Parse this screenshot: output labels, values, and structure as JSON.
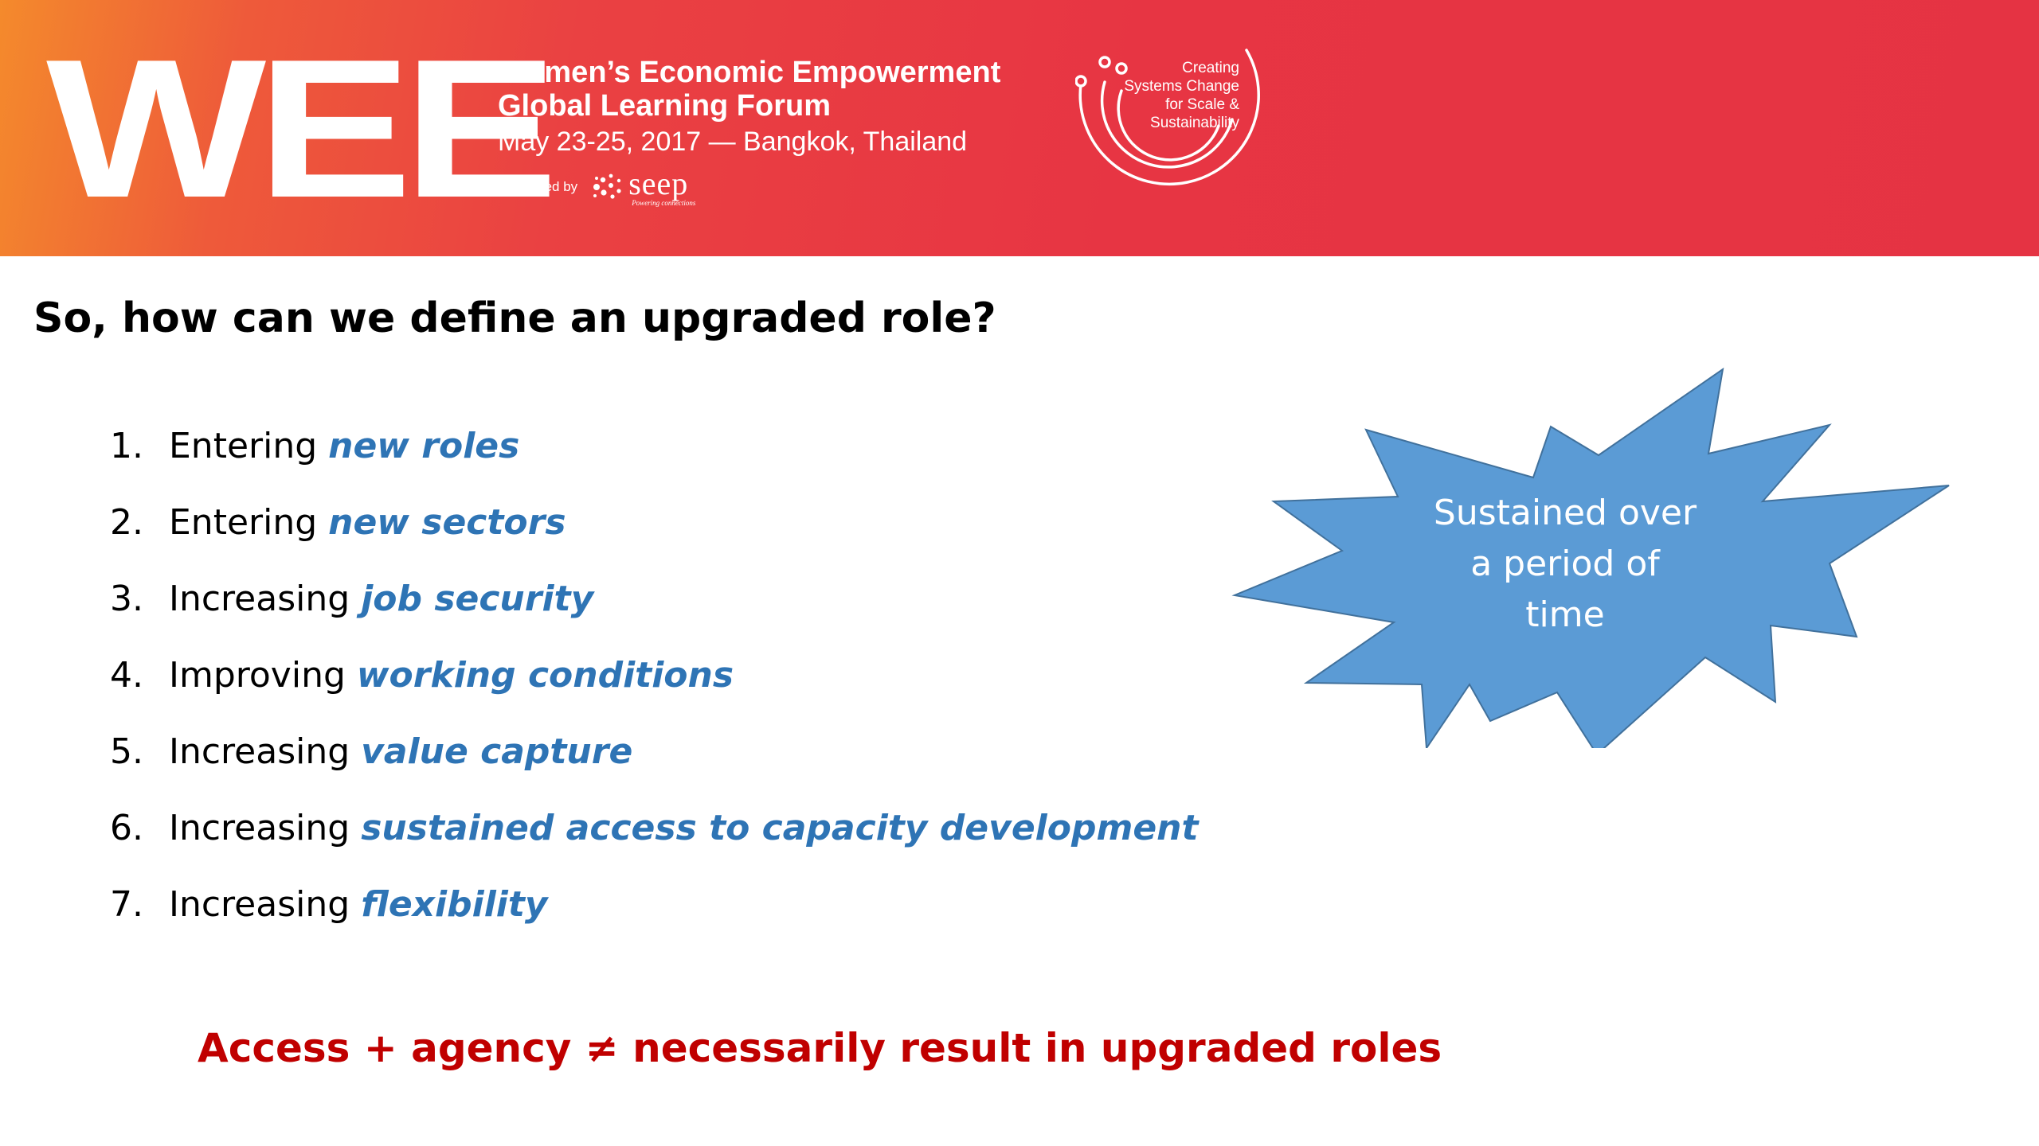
{
  "banner": {
    "logo": "WEE",
    "title_line1": "Women’s Economic Empowerment",
    "title_line2": "Global Learning Forum",
    "date_location": "May 23-25, 2017 — Bangkok, Thailand",
    "convened_label": "Convened by",
    "convener_logo": "seep",
    "convener_tagline": "Powering connections",
    "circle_text": [
      "Creating",
      "Systems Change",
      "for Scale &",
      "Sustainability"
    ],
    "colors": {
      "gradient_start": "#f48a2c",
      "gradient_main": "#e73543"
    }
  },
  "heading": "So, how can we define an upgraded role?",
  "list": [
    {
      "number": "1.",
      "lead": "Entering",
      "emphasis": "new roles"
    },
    {
      "number": "2.",
      "lead": "Entering",
      "emphasis": "new sectors"
    },
    {
      "number": "3.",
      "lead": "Increasing",
      "emphasis": "job security"
    },
    {
      "number": "4.",
      "lead": "Improving",
      "emphasis": "working conditions"
    },
    {
      "number": "5.",
      "lead": "Increasing",
      "emphasis": "value capture"
    },
    {
      "number": "6.",
      "lead": "Increasing",
      "emphasis": "sustained access to capacity development"
    },
    {
      "number": "7.",
      "lead": "Increasing",
      "emphasis": "flexibility"
    }
  ],
  "burst": {
    "lines": [
      "Sustained over",
      "a period of",
      "time"
    ],
    "fill": "#5b9bd5",
    "stroke": "#41719c"
  },
  "footer_note": "Access + agency ≠ necessarily result in upgraded roles",
  "colors": {
    "emphasis": "#2e74b5",
    "footer": "#c00000"
  }
}
